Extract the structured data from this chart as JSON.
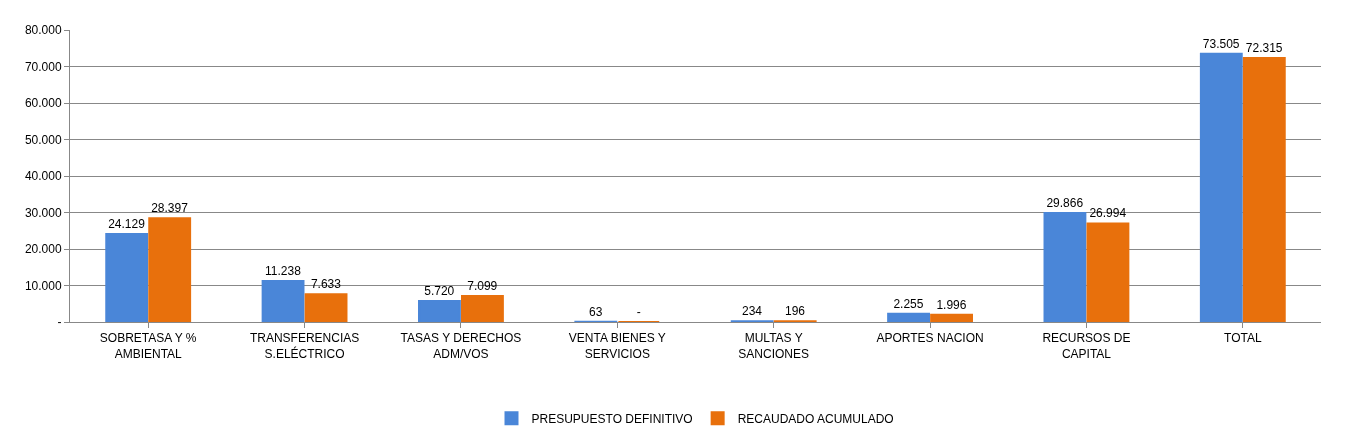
{
  "chart_data": {
    "type": "bar",
    "categories": [
      "SOBRETASA Y %\nAMBIENTAL",
      "TRANSFERENCIAS\nS.ELÉCTRICO",
      "TASAS Y DERECHOS\nADM/VOS",
      "VENTA BIENES Y\nSERVICIOS",
      "MULTAS Y\nSANCIONES",
      "APORTES NACION",
      "RECURSOS DE\nCAPITAL",
      "TOTAL"
    ],
    "series": [
      {
        "name": "PRESUPUESTO DEFINITIVO",
        "color": "#4a86d8",
        "values": [
          24129,
          11238,
          5720,
          63,
          234,
          2255,
          29866,
          73505
        ],
        "value_labels": [
          "24.129",
          "11.238",
          "5.720",
          "63",
          "234",
          "2.255",
          "29.866",
          "73.505"
        ]
      },
      {
        "name": "RECAUDADO ACUMULADO",
        "color": "#e8700c",
        "values": [
          28397,
          7633,
          7099,
          0,
          196,
          1996,
          26994,
          72315
        ],
        "value_labels": [
          "28.397",
          "7.633",
          "7.099",
          "-",
          "196",
          "1.996",
          "26.994",
          "72.315"
        ]
      }
    ],
    "ylim": [
      0,
      80000
    ],
    "yticks": [
      {
        "value": 0,
        "label": "-"
      },
      {
        "value": 10000,
        "label": "10.000"
      },
      {
        "value": 20000,
        "label": "20.000"
      },
      {
        "value": 30000,
        "label": "30.000"
      },
      {
        "value": 40000,
        "label": "40.000"
      },
      {
        "value": 50000,
        "label": "50.000"
      },
      {
        "value": 60000,
        "label": "60.000"
      },
      {
        "value": 70000,
        "label": "70.000"
      },
      {
        "value": 80000,
        "label": "80.000"
      }
    ],
    "grid": "y",
    "legend": "bottom"
  }
}
